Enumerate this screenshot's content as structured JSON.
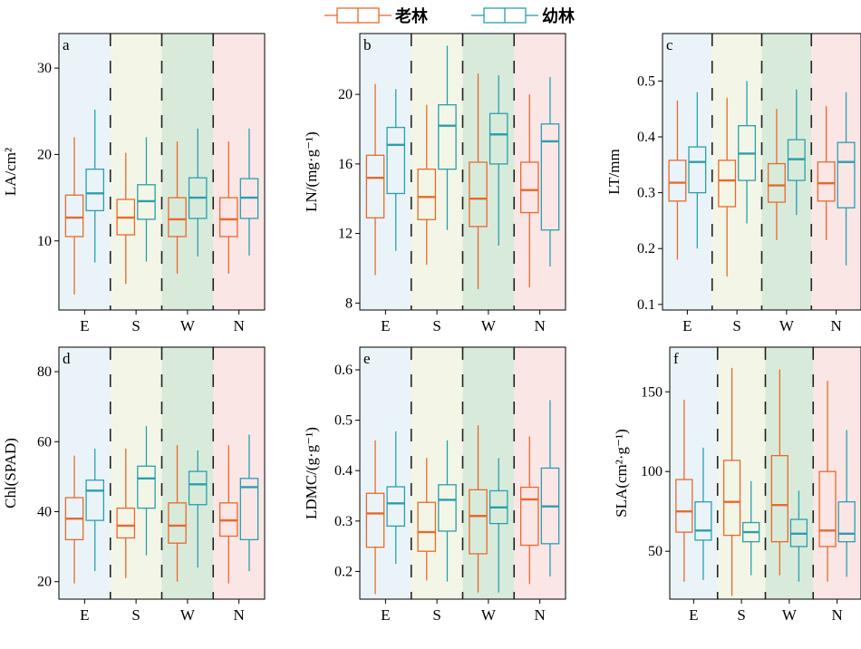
{
  "legend": {
    "old": "老林",
    "young": "幼林"
  },
  "colors": {
    "old": "#e8692b",
    "young": "#2a9fae",
    "bg": [
      "#eaf4f8",
      "#f3f6e6",
      "#d8ebdb",
      "#fbe6e6"
    ]
  },
  "chart_data": [
    {
      "type": "box",
      "panel_label": "a",
      "ylabel": "LA/cm²",
      "ylim": [
        2,
        34
      ],
      "yticks": [
        10,
        20,
        30
      ],
      "categories": [
        "E",
        "S",
        "W",
        "N"
      ],
      "series": [
        {
          "name": "老林",
          "boxes": [
            [
              3.8,
              10.5,
              12.7,
              15.3,
              22.0
            ],
            [
              5.0,
              10.7,
              12.7,
              14.8,
              20.2
            ],
            [
              6.2,
              10.5,
              12.5,
              15.0,
              21.5
            ],
            [
              6.2,
              10.5,
              12.5,
              15.0,
              21.5
            ]
          ]
        },
        {
          "name": "幼林",
          "boxes": [
            [
              7.5,
              13.5,
              15.5,
              18.3,
              25.2
            ],
            [
              7.6,
              12.5,
              14.6,
              16.5,
              22.0
            ],
            [
              8.2,
              12.6,
              15.0,
              17.3,
              23.0
            ],
            [
              8.3,
              12.6,
              15.0,
              17.2,
              23.0
            ]
          ]
        }
      ]
    },
    {
      "type": "box",
      "panel_label": "b",
      "ylabel": "LN/(mg·g⁻¹)",
      "ylim": [
        7.6,
        23.5
      ],
      "yticks": [
        8,
        12,
        16,
        20
      ],
      "categories": [
        "E",
        "S",
        "W",
        "N"
      ],
      "series": [
        {
          "name": "老林",
          "boxes": [
            [
              9.6,
              12.9,
              15.2,
              16.5,
              20.6
            ],
            [
              10.2,
              12.8,
              14.1,
              15.7,
              19.4
            ],
            [
              8.8,
              12.4,
              14.0,
              16.1,
              21.2
            ],
            [
              8.9,
              13.2,
              14.5,
              16.1,
              20.0
            ]
          ]
        },
        {
          "name": "幼林",
          "boxes": [
            [
              11.0,
              14.3,
              17.1,
              18.1,
              20.3
            ],
            [
              12.2,
              15.7,
              18.2,
              19.4,
              22.8
            ],
            [
              11.3,
              16.0,
              17.7,
              18.9,
              21.1
            ],
            [
              10.1,
              12.2,
              17.3,
              18.3,
              21.0
            ]
          ]
        }
      ]
    },
    {
      "type": "box",
      "panel_label": "c",
      "ylabel": "LT/mm",
      "ylim": [
        0.09,
        0.585
      ],
      "yticks": [
        0.1,
        0.2,
        0.3,
        0.4,
        0.5
      ],
      "categories": [
        "E",
        "S",
        "W",
        "N"
      ],
      "series": [
        {
          "name": "老林",
          "boxes": [
            [
              0.18,
              0.285,
              0.318,
              0.358,
              0.465
            ],
            [
              0.15,
              0.275,
              0.322,
              0.358,
              0.47
            ],
            [
              0.215,
              0.283,
              0.313,
              0.352,
              0.45
            ],
            [
              0.215,
              0.285,
              0.317,
              0.355,
              0.455
            ]
          ]
        },
        {
          "name": "幼林",
          "boxes": [
            [
              0.2,
              0.3,
              0.355,
              0.382,
              0.48
            ],
            [
              0.245,
              0.322,
              0.37,
              0.42,
              0.5
            ],
            [
              0.26,
              0.322,
              0.36,
              0.395,
              0.485
            ],
            [
              0.17,
              0.273,
              0.355,
              0.39,
              0.48
            ]
          ]
        }
      ]
    },
    {
      "type": "box",
      "panel_label": "d",
      "ylabel": "Chl(SPAD)",
      "ylim": [
        15,
        87
      ],
      "yticks": [
        20,
        40,
        60,
        80
      ],
      "categories": [
        "E",
        "S",
        "W",
        "N"
      ],
      "series": [
        {
          "name": "老林",
          "boxes": [
            [
              19.5,
              32.0,
              38.0,
              44.0,
              56.0
            ],
            [
              21.0,
              32.5,
              36.0,
              41.0,
              58.0
            ],
            [
              20.0,
              31.0,
              36.0,
              42.5,
              59.0
            ],
            [
              19.5,
              33.0,
              37.5,
              42.5,
              59.0
            ]
          ]
        },
        {
          "name": "幼林",
          "boxes": [
            [
              23.0,
              37.5,
              46.0,
              49.0,
              58.0
            ],
            [
              27.5,
              41.0,
              49.5,
              53.0,
              64.5
            ],
            [
              24.0,
              42.0,
              47.8,
              51.5,
              57.5
            ],
            [
              23.0,
              32.0,
              47.0,
              49.5,
              62.0
            ]
          ]
        }
      ]
    },
    {
      "type": "box",
      "panel_label": "e",
      "ylabel": "LDMC/(g·g⁻¹)",
      "ylim": [
        0.145,
        0.645
      ],
      "yticks": [
        0.2,
        0.3,
        0.4,
        0.5,
        0.6
      ],
      "categories": [
        "E",
        "S",
        "W",
        "N"
      ],
      "series": [
        {
          "name": "老林",
          "boxes": [
            [
              0.155,
              0.248,
              0.315,
              0.355,
              0.46
            ],
            [
              0.182,
              0.24,
              0.278,
              0.337,
              0.425
            ],
            [
              0.158,
              0.235,
              0.31,
              0.362,
              0.49
            ],
            [
              0.175,
              0.252,
              0.343,
              0.367,
              0.468
            ]
          ]
        },
        {
          "name": "幼林",
          "boxes": [
            [
              0.215,
              0.29,
              0.335,
              0.368,
              0.478
            ],
            [
              0.18,
              0.28,
              0.342,
              0.372,
              0.46
            ],
            [
              0.158,
              0.295,
              0.327,
              0.36,
              0.425
            ],
            [
              0.19,
              0.255,
              0.329,
              0.405,
              0.54
            ]
          ]
        }
      ]
    },
    {
      "type": "box",
      "panel_label": "f",
      "ylabel": "SLA(cm²·g⁻¹)",
      "ylim": [
        20,
        178
      ],
      "yticks": [
        50,
        100,
        150
      ],
      "categories": [
        "E",
        "S",
        "W",
        "N"
      ],
      "series": [
        {
          "name": "老林",
          "boxes": [
            [
              31.0,
              62.0,
              75.0,
              95.0,
              145.0
            ],
            [
              22.0,
              60.0,
              81.0,
              107.0,
              165.0
            ],
            [
              35.0,
              56.0,
              79.0,
              110.0,
              164.0
            ],
            [
              31.0,
              53.0,
              63.0,
              100.0,
              157.0
            ]
          ]
        },
        {
          "name": "幼林",
          "boxes": [
            [
              32.0,
              57.0,
              63.0,
              81.0,
              115.0
            ],
            [
              35.0,
              56.0,
              62.0,
              68.0,
              94.0
            ],
            [
              31.0,
              53.0,
              61.0,
              70.0,
              88.0
            ],
            [
              34.0,
              56.0,
              61.0,
              81.0,
              126.0
            ]
          ]
        }
      ]
    }
  ]
}
